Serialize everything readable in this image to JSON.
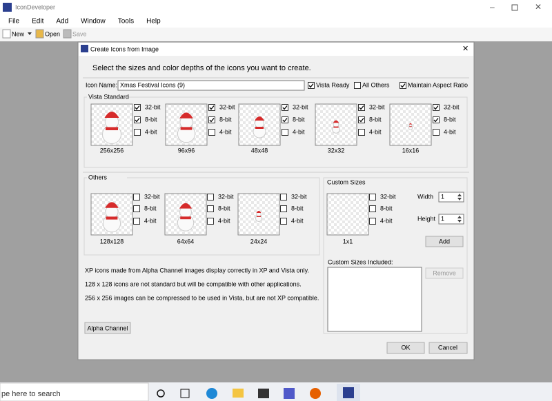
{
  "app": {
    "title": "IconDeveloper",
    "menu": [
      "File",
      "Edit",
      "Add",
      "Window",
      "Tools",
      "Help"
    ],
    "toolbar": [
      "New",
      "Open",
      "Save"
    ]
  },
  "dialog": {
    "title": "Create Icons from Image",
    "instruction": "Select the sizes and color depths of the icons you want to create.",
    "icon_name_label": "Icon Name:",
    "icon_name_value": "Xmas Festival Icons (9)",
    "options": [
      {
        "label": "Vista Ready",
        "checked": true
      },
      {
        "label": "All Others",
        "checked": false
      },
      {
        "label": "Maintain Aspect Ratio",
        "checked": true
      }
    ],
    "vista": {
      "title": "Vista Standard",
      "icons": [
        {
          "size": "256x256",
          "depths": [
            {
              "label": "32-bit",
              "checked": true
            },
            {
              "label": "8-bit",
              "checked": true
            },
            {
              "label": "4-bit",
              "checked": false
            }
          ]
        },
        {
          "size": "96x96",
          "depths": [
            {
              "label": "32-bit",
              "checked": true
            },
            {
              "label": "8-bit",
              "checked": true
            },
            {
              "label": "4-bit",
              "checked": false
            }
          ]
        },
        {
          "size": "48x48",
          "depths": [
            {
              "label": "32-bit",
              "checked": true
            },
            {
              "label": "8-bit",
              "checked": true
            },
            {
              "label": "4-bit",
              "checked": false
            }
          ]
        },
        {
          "size": "32x32",
          "depths": [
            {
              "label": "32-bit",
              "checked": true
            },
            {
              "label": "8-bit",
              "checked": true
            },
            {
              "label": "4-bit",
              "checked": false
            }
          ]
        },
        {
          "size": "16x16",
          "depths": [
            {
              "label": "32-bit",
              "checked": true
            },
            {
              "label": "8-bit",
              "checked": true
            },
            {
              "label": "4-bit",
              "checked": false
            }
          ]
        }
      ]
    },
    "others": {
      "title": "Others",
      "icons": [
        {
          "size": "128x128",
          "depths": [
            {
              "label": "32-bit",
              "checked": false
            },
            {
              "label": "8-bit",
              "checked": false
            },
            {
              "label": "4-bit",
              "checked": false
            }
          ]
        },
        {
          "size": "64x64",
          "depths": [
            {
              "label": "32-bit",
              "checked": false
            },
            {
              "label": "8-bit",
              "checked": false
            },
            {
              "label": "4-bit",
              "checked": false
            }
          ]
        },
        {
          "size": "24x24",
          "depths": [
            {
              "label": "32-bit",
              "checked": false
            },
            {
              "label": "8-bit",
              "checked": false
            },
            {
              "label": "4-bit",
              "checked": false
            }
          ]
        }
      ]
    },
    "custom": {
      "title": "Custom Sizes",
      "icons": [
        {
          "size": "1x1",
          "depths": [
            {
              "label": "32-bit",
              "checked": false
            },
            {
              "label": "8-bit",
              "checked": false
            },
            {
              "label": "4-bit",
              "checked": false
            }
          ]
        }
      ],
      "width_label": "Width",
      "width": 1,
      "height_label": "Height",
      "height": 1,
      "add": "Add",
      "included_label": "Custom Sizes Included:",
      "remove": "Remove"
    },
    "notes": [
      "XP icons made from Alpha Channel images display correctly in XP and Vista only.",
      "128 x 128 icons are not standard but will be compatible with other applications.",
      "256 x 256 images can be compressed to be used in Vista, but are not XP compatible."
    ],
    "alpha_button": "Alpha Channel",
    "ok": "OK",
    "cancel": "Cancel"
  },
  "taskbar": {
    "search": "pe here to search"
  }
}
